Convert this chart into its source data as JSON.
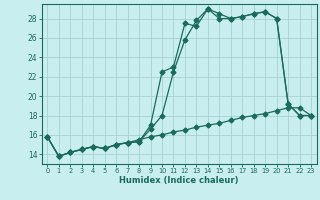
{
  "xlabel": "Humidex (Indice chaleur)",
  "background_color": "#c8eef0",
  "grid_color": "#a0cccc",
  "line_color": "#1a6b5a",
  "xlim": [
    -0.5,
    23.5
  ],
  "ylim": [
    13.0,
    29.5
  ],
  "xticks": [
    0,
    1,
    2,
    3,
    4,
    5,
    6,
    7,
    8,
    9,
    10,
    11,
    12,
    13,
    14,
    15,
    16,
    17,
    18,
    19,
    20,
    21,
    22,
    23
  ],
  "yticks": [
    14,
    16,
    18,
    20,
    22,
    24,
    26,
    28
  ],
  "series1_x": [
    0,
    1,
    2,
    3,
    4,
    5,
    6,
    7,
    8,
    9,
    10,
    11,
    12,
    13,
    14,
    15,
    16,
    17,
    18,
    19,
    20,
    21,
    22,
    23
  ],
  "series1_y": [
    15.8,
    13.8,
    14.2,
    14.5,
    14.8,
    14.6,
    15.0,
    15.2,
    15.3,
    16.6,
    18.0,
    22.5,
    25.8,
    27.8,
    29.0,
    28.5,
    28.0,
    28.2,
    28.5,
    28.7,
    28.0,
    19.2,
    18.0,
    18.0
  ],
  "series2_x": [
    0,
    1,
    2,
    3,
    4,
    5,
    6,
    7,
    8,
    9,
    10,
    11,
    12,
    13,
    14,
    15,
    16,
    17,
    18,
    19,
    20,
    21,
    22,
    23
  ],
  "series2_y": [
    15.8,
    13.8,
    14.2,
    14.5,
    14.8,
    14.6,
    15.0,
    15.2,
    15.3,
    17.0,
    22.5,
    23.0,
    27.5,
    27.2,
    29.0,
    28.0,
    28.0,
    28.2,
    28.5,
    28.7,
    28.0,
    19.2,
    18.0,
    18.0
  ],
  "series3_x": [
    0,
    1,
    2,
    3,
    4,
    5,
    6,
    7,
    8,
    9,
    10,
    11,
    12,
    13,
    14,
    15,
    16,
    17,
    18,
    19,
    20,
    21,
    22,
    23
  ],
  "series3_y": [
    15.8,
    13.8,
    14.2,
    14.5,
    14.8,
    14.6,
    15.0,
    15.2,
    15.5,
    15.8,
    16.0,
    16.3,
    16.5,
    16.8,
    17.0,
    17.2,
    17.5,
    17.8,
    18.0,
    18.2,
    18.5,
    18.8,
    18.8,
    18.0
  ]
}
